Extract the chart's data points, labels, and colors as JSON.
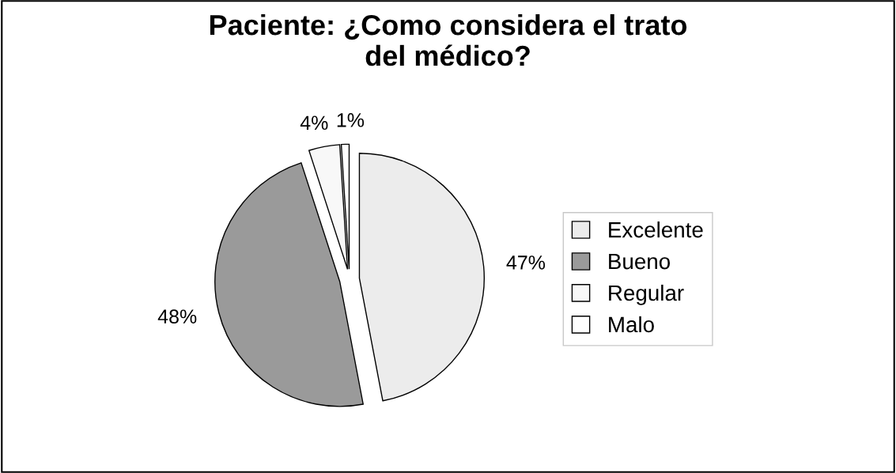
{
  "chart_data": {
    "type": "pie",
    "title": "Paciente: ¿Como considera el trato\ndel médico?",
    "categories": [
      "Excelente",
      "Bueno",
      "Regular",
      "Malo"
    ],
    "values": [
      47,
      48,
      4,
      1
    ],
    "colors": [
      "#ececec",
      "#9a9a9a",
      "#f8f8f8",
      "#ffffff"
    ],
    "value_labels": [
      "47%",
      "48%",
      "4%",
      "1%"
    ],
    "legend": "right"
  }
}
